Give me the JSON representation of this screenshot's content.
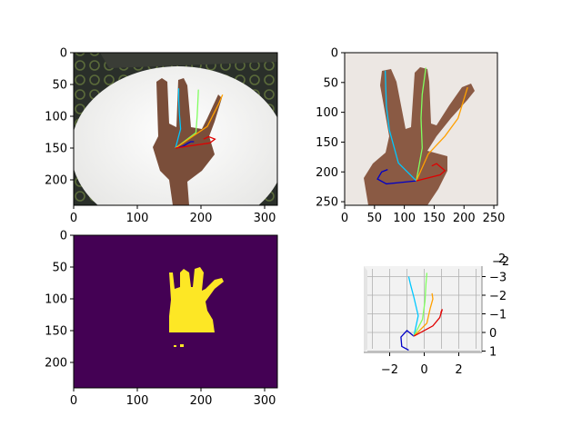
{
  "colors": {
    "figure_bg": "#ffffff",
    "mask_bg": "#440154",
    "mask_fg": "#fde725",
    "photo_table": "#eeeeec",
    "photo_carpet": "#2a2f2a",
    "photo_wall": "#ece7e3",
    "skin": "#7a4e3a",
    "pane3d": "#f2f2f2",
    "grid3d": "#b0b0b0"
  },
  "chart_data": [
    {
      "id": "rgb_with_skeleton",
      "type": "image",
      "content": "photo of a hand showing three fingers on a round white table, with hand skeleton overlay",
      "xlim": [
        0,
        320
      ],
      "ylim": [
        240,
        0
      ],
      "xticks": [
        0,
        100,
        200,
        300
      ],
      "yticks": [
        0,
        50,
        100,
        150,
        200
      ],
      "xtick_labels": [
        "0",
        "100",
        "200",
        "300"
      ],
      "ytick_labels": [
        "0",
        "50",
        "100",
        "150",
        "200"
      ],
      "skeleton_2d": [
        {
          "finger": "thumb",
          "color": "#0000c8",
          "points": [
            [
              160,
              150
            ],
            [
              172,
              147
            ],
            [
              180,
              142
            ],
            [
              184,
              140
            ],
            [
              189,
              140
            ]
          ]
        },
        {
          "finger": "index",
          "color": "#00c8ff",
          "points": [
            [
              160,
              150
            ],
            [
              168,
              120
            ],
            [
              166,
              95
            ],
            [
              165,
              75
            ],
            [
              165,
              56
            ]
          ]
        },
        {
          "finger": "middle",
          "color": "#80ff60",
          "points": [
            [
              160,
              150
            ],
            [
              192,
              126
            ],
            [
              194,
              100
            ],
            [
              195,
              80
            ],
            [
              196,
              58
            ]
          ]
        },
        {
          "finger": "ring",
          "color": "#ffa000",
          "points": [
            [
              160,
              150
            ],
            [
              210,
              116
            ],
            [
              220,
              96
            ],
            [
              228,
              80
            ],
            [
              234,
              66
            ]
          ]
        },
        {
          "finger": "pinky",
          "color": "#e00000",
          "points": [
            [
              160,
              150
            ],
            [
              214,
              142
            ],
            [
              222,
              136
            ],
            [
              212,
              132
            ],
            [
              204,
              136
            ]
          ]
        }
      ]
    },
    {
      "id": "hand_crop_with_skeleton",
      "type": "image",
      "content": "cropped hand showing three fingers with hand skeleton overlay",
      "xlim": [
        0,
        256
      ],
      "ylim": [
        256,
        0
      ],
      "xticks": [
        0,
        50,
        100,
        150,
        200,
        250
      ],
      "yticks": [
        0,
        50,
        100,
        150,
        200,
        250
      ],
      "xtick_labels": [
        "0",
        "50",
        "100",
        "150",
        "200",
        "250"
      ],
      "ytick_labels": [
        "0",
        "50",
        "100",
        "150",
        "200",
        "250"
      ],
      "skeleton_2d": [
        {
          "finger": "thumb",
          "color": "#0000c8",
          "points": [
            [
              120,
              215
            ],
            [
              90,
              218
            ],
            [
              70,
              220
            ],
            [
              55,
              212
            ],
            [
              62,
              200
            ],
            [
              72,
              196
            ]
          ]
        },
        {
          "finger": "index",
          "color": "#00c8ff",
          "points": [
            [
              120,
              215
            ],
            [
              90,
              185
            ],
            [
              75,
              130
            ],
            [
              70,
              90
            ],
            [
              68,
              30
            ]
          ]
        },
        {
          "finger": "middle",
          "color": "#80ff60",
          "points": [
            [
              120,
              215
            ],
            [
              130,
              160
            ],
            [
              128,
              110
            ],
            [
              130,
              70
            ],
            [
              136,
              25
            ]
          ]
        },
        {
          "finger": "ring",
          "color": "#ffa000",
          "points": [
            [
              120,
              215
            ],
            [
              140,
              170
            ],
            [
              168,
              140
            ],
            [
              190,
              110
            ],
            [
              206,
              58
            ]
          ]
        },
        {
          "finger": "pinky",
          "color": "#e00000",
          "points": [
            [
              120,
              215
            ],
            [
              160,
              205
            ],
            [
              168,
              198
            ],
            [
              154,
              186
            ],
            [
              146,
              190
            ]
          ]
        }
      ]
    },
    {
      "id": "segmentation_mask",
      "type": "heatmap",
      "content": "binary hand segmentation mask",
      "xlim": [
        0,
        320
      ],
      "ylim": [
        240,
        0
      ],
      "xticks": [
        0,
        100,
        200,
        300
      ],
      "yticks": [
        0,
        50,
        100,
        150,
        200
      ],
      "xtick_labels": [
        "0",
        "100",
        "200",
        "300"
      ],
      "ytick_labels": [
        "0",
        "50",
        "100",
        "150",
        "200"
      ]
    },
    {
      "id": "skeleton_3d",
      "type": "line3d",
      "xticks": [
        -2,
        0,
        2
      ],
      "xtick_labels": [
        "−2",
        "0",
        "2"
      ],
      "zticks": [
        1,
        0,
        -1,
        -2,
        -3
      ],
      "ztick_labels": [
        "1",
        "0",
        "−1",
        "−2",
        "−3"
      ],
      "corner_labels": [
        "2",
        "−2"
      ],
      "series": [
        {
          "finger": "thumb",
          "color": "#0000c8",
          "points": [
            [
              -0.6,
              0.2
            ],
            [
              -1.0,
              -0.1
            ],
            [
              -1.35,
              0.25
            ],
            [
              -1.3,
              0.75
            ],
            [
              -0.9,
              0.95
            ]
          ]
        },
        {
          "finger": "index",
          "color": "#00c8ff",
          "points": [
            [
              -0.6,
              0.2
            ],
            [
              -0.35,
              -0.9
            ],
            [
              -0.6,
              -1.9
            ],
            [
              -0.8,
              -2.6
            ],
            [
              -0.9,
              -3.0
            ]
          ]
        },
        {
          "finger": "middle",
          "color": "#80ff60",
          "points": [
            [
              -0.6,
              0.2
            ],
            [
              -0.1,
              -0.7
            ],
            [
              0.05,
              -1.7
            ],
            [
              0.1,
              -2.6
            ],
            [
              0.15,
              -3.2
            ]
          ]
        },
        {
          "finger": "ring",
          "color": "#ffa000",
          "points": [
            [
              -0.6,
              0.2
            ],
            [
              0.15,
              -0.5
            ],
            [
              0.35,
              -1.3
            ],
            [
              0.5,
              -1.8
            ],
            [
              0.45,
              -2.1
            ]
          ]
        },
        {
          "finger": "pinky",
          "color": "#e00000",
          "points": [
            [
              -0.6,
              0.2
            ],
            [
              0.5,
              -0.35
            ],
            [
              0.9,
              -0.8
            ],
            [
              1.05,
              -1.25
            ],
            [
              0.95,
              -1.05
            ]
          ]
        }
      ]
    }
  ]
}
